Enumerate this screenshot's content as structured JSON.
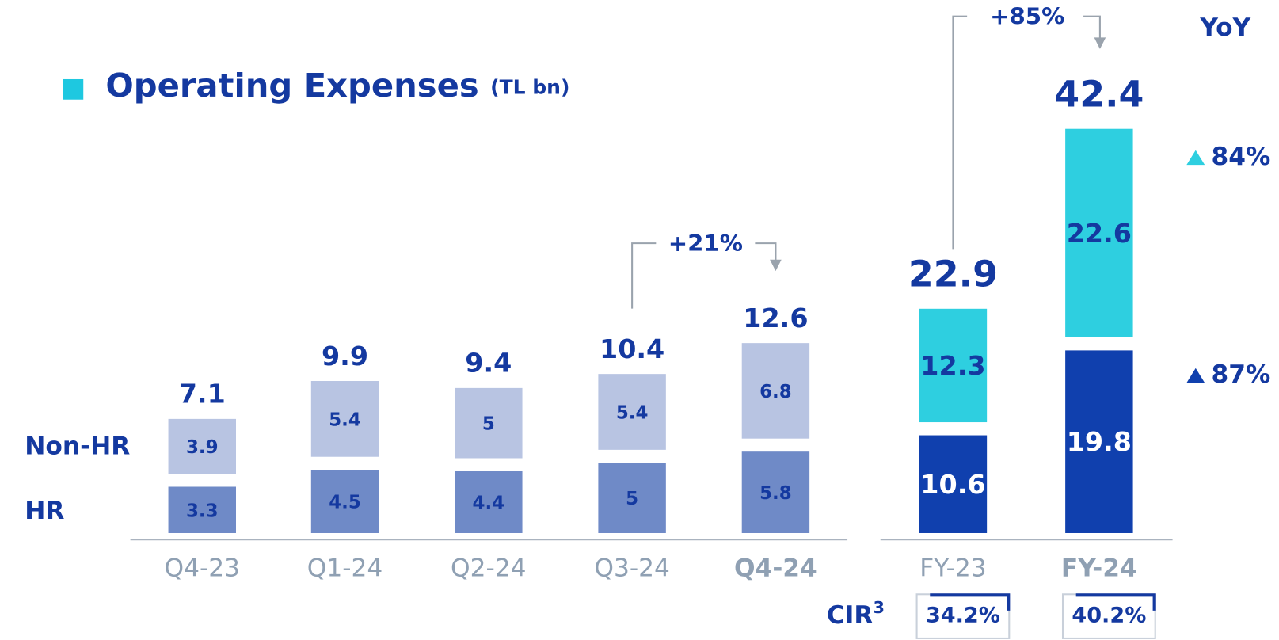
{
  "chart_data": [
    {
      "type": "stacked_bar",
      "title": "Operating Expenses",
      "unit": "(TL bn)",
      "categories": [
        "Q4-23",
        "Q1-24",
        "Q2-24",
        "Q3-24",
        "Q4-24"
      ],
      "series": [
        {
          "name": "HR",
          "color": "#6f8ac7",
          "values": [
            3.3,
            4.5,
            4.4,
            5.0,
            5.8
          ]
        },
        {
          "name": "Non-HR",
          "color": "#b8c4e2",
          "values": [
            3.9,
            5.4,
            5.0,
            5.4,
            6.8
          ]
        }
      ],
      "totals": [
        7.1,
        9.9,
        9.4,
        10.4,
        12.6
      ],
      "highlight": 4,
      "change_label": "+21%"
    },
    {
      "type": "stacked_bar",
      "categories": [
        "FY-23",
        "FY-24"
      ],
      "series": [
        {
          "color": "#1040ae",
          "values": [
            10.6,
            19.8
          ],
          "yoy": "87%"
        },
        {
          "color": "#2ecfe0",
          "values": [
            12.3,
            22.6
          ],
          "yoy": "84%"
        }
      ],
      "totals": [
        22.9,
        42.4
      ],
      "highlight": 1,
      "change_label": "+85%",
      "yoy_title": "YoY",
      "cir_label": "CIR",
      "cir_note": "3",
      "cir": [
        "34.2%",
        "40.2%"
      ]
    }
  ]
}
